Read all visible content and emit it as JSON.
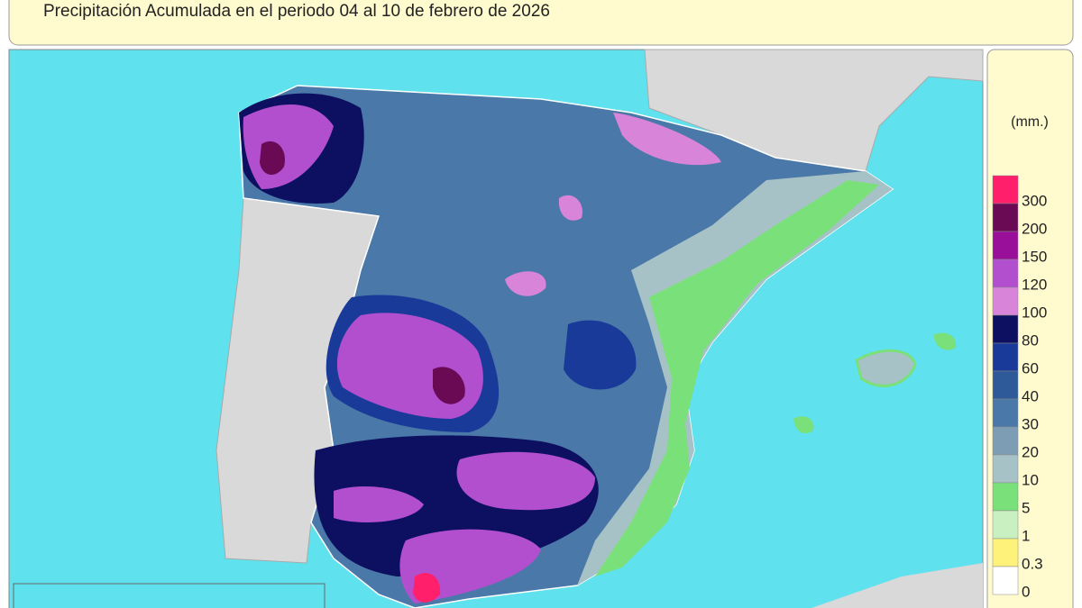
{
  "header": {
    "title": "Precipitación Acumulada en el periodo 04 al 10 de febrero de 2026"
  },
  "legend": {
    "unit": "(mm.)",
    "items": [
      {
        "label": "300",
        "color": "#ff1f6b"
      },
      {
        "label": "200",
        "color": "#6a0a55"
      },
      {
        "label": "150",
        "color": "#9a0f9a"
      },
      {
        "label": "120",
        "color": "#b24fcf"
      },
      {
        "label": "100",
        "color": "#d884d8"
      },
      {
        "label": "80",
        "color": "#0d1060"
      },
      {
        "label": "60",
        "color": "#1a3a9a"
      },
      {
        "label": "40",
        "color": "#2e5a9a"
      },
      {
        "label": "30",
        "color": "#4a78a8"
      },
      {
        "label": "20",
        "color": "#7d9db4"
      },
      {
        "label": "10",
        "color": "#a7c2c6"
      },
      {
        "label": "5",
        "color": "#7ae07a"
      },
      {
        "label": "1",
        "color": "#c8f0c0"
      },
      {
        "label": "0.3",
        "color": "#fff27a"
      },
      {
        "label": "0",
        "color": "#ffffff"
      }
    ]
  }
}
